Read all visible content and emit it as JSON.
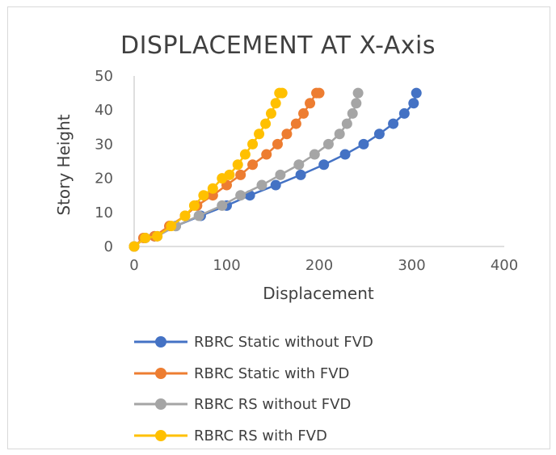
{
  "chart_data": {
    "type": "scatter",
    "title": "DISPLACEMENT AT X-Axis",
    "xlabel": "Displacement",
    "ylabel": "Story Height",
    "xlim": [
      0,
      400
    ],
    "ylim": [
      0,
      50
    ],
    "x_ticks": [
      "0",
      "100",
      "200",
      "300",
      "400"
    ],
    "y_ticks": [
      "0",
      "10",
      "20",
      "30",
      "40",
      "50"
    ],
    "grid": false,
    "legend_position": "bottom",
    "lines": true,
    "series": [
      {
        "name": "RBRC Static without FVD",
        "color": "#4472c4",
        "x": [
          0,
          12,
          22,
          45,
          72,
          100,
          125,
          153,
          180,
          205,
          228,
          248,
          265,
          280,
          292,
          302,
          305
        ],
        "y": [
          0,
          2.5,
          3,
          6,
          9,
          12,
          15,
          18,
          21,
          24,
          27,
          30,
          33,
          36,
          39,
          42,
          45
        ]
      },
      {
        "name": "RBRC Static with FVD",
        "color": "#ed7d31",
        "x": [
          0,
          10,
          22,
          38,
          55,
          68,
          85,
          100,
          115,
          128,
          143,
          155,
          165,
          175,
          183,
          190,
          197,
          200
        ],
        "y": [
          0,
          2.5,
          3,
          6,
          9,
          12,
          15,
          18,
          21,
          24,
          27,
          30,
          33,
          36,
          39,
          42,
          45,
          45
        ]
      },
      {
        "name": "RBRC RS without FVD",
        "color": "#a5a5a5",
        "x": [
          0,
          12,
          25,
          45,
          70,
          95,
          115,
          138,
          158,
          178,
          195,
          210,
          222,
          230,
          236,
          240,
          242
        ],
        "y": [
          0,
          2.5,
          3,
          6,
          9,
          12,
          15,
          18,
          21,
          24,
          27,
          30,
          33,
          36,
          39,
          42,
          45
        ]
      },
      {
        "name": "RBRC RS with FVD",
        "color": "#ffc000",
        "x": [
          0,
          12,
          25,
          40,
          55,
          65,
          75,
          85,
          95,
          103,
          112,
          120,
          128,
          135,
          142,
          148,
          153,
          157,
          160
        ],
        "y": [
          0,
          2.5,
          3,
          6,
          9,
          12,
          15,
          17,
          20,
          21,
          24,
          27,
          30,
          33,
          36,
          39,
          42,
          45,
          45
        ]
      }
    ]
  }
}
